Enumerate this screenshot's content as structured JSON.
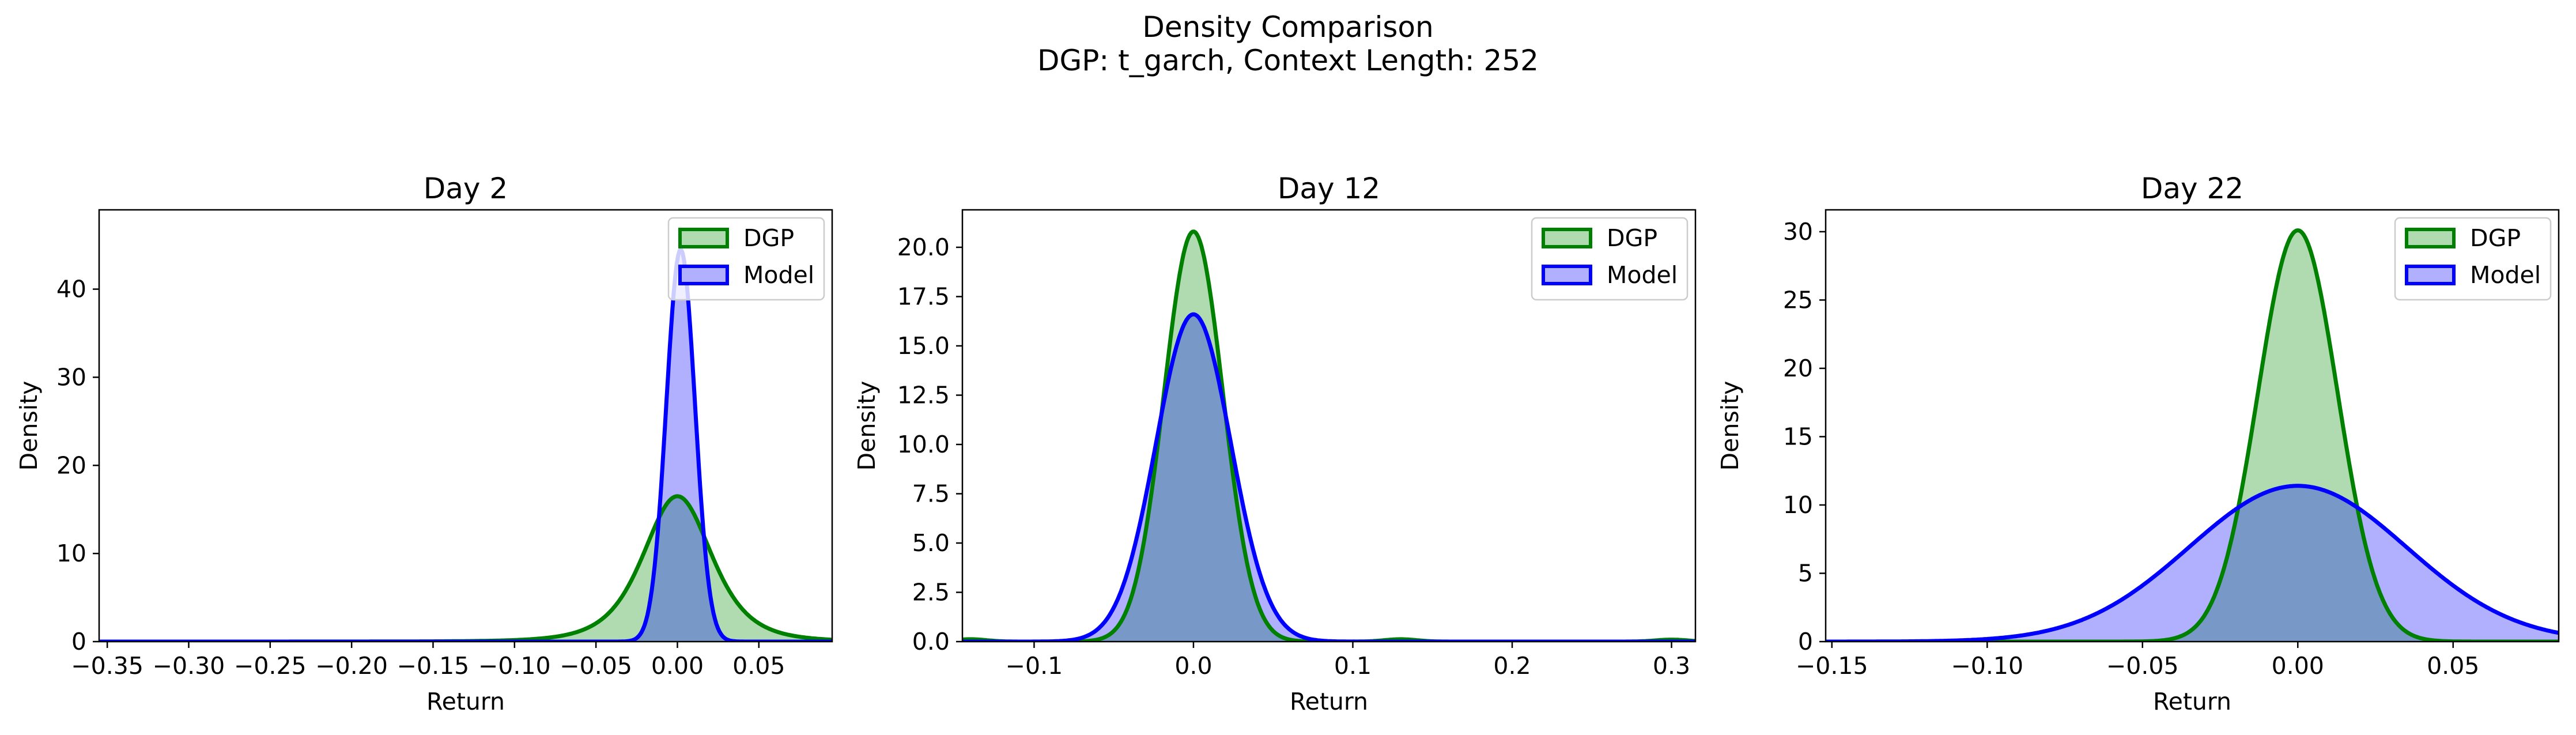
{
  "figure": {
    "title_line1": "Density Comparison",
    "title_line2": "DGP: t_garch, Context Length: 252"
  },
  "colors": {
    "dgp_line": "#008000",
    "dgp_fill": "#b0dab0",
    "model_line": "#0000ff",
    "model_fill": "#b0b0ff",
    "overlap_fill": "#7898c8"
  },
  "chart_data": [
    {
      "type": "area",
      "title": "Day 2",
      "xlabel": "Return",
      "ylabel": "Density",
      "xlim": [
        -0.355,
        0.095
      ],
      "ylim": [
        0,
        49
      ],
      "xticks": [
        -0.35,
        -0.3,
        -0.25,
        -0.2,
        -0.15,
        -0.1,
        -0.05,
        0.0,
        0.05
      ],
      "xtick_labels": [
        "−0.35",
        "−0.30",
        "−0.25",
        "−0.20",
        "−0.15",
        "−0.10",
        "−0.05",
        "0.00",
        "0.05"
      ],
      "yticks": [
        0,
        10,
        20,
        30,
        40
      ],
      "ytick_labels": [
        "0",
        "10",
        "20",
        "30",
        "40"
      ],
      "legend": {
        "position": "top-right",
        "entries": [
          "DGP",
          "Model"
        ]
      },
      "series": [
        {
          "name": "DGP",
          "kind": "t",
          "center": 0.0,
          "peak": 16.5,
          "scale": 0.022,
          "df": 4
        },
        {
          "name": "Model",
          "kind": "normal",
          "center": 0.002,
          "peak": 44.5,
          "sigma": 0.0088
        }
      ]
    },
    {
      "type": "area",
      "title": "Day 12",
      "xlabel": "Return",
      "ylabel": "Density",
      "xlim": [
        -0.145,
        0.315
      ],
      "ylim": [
        0,
        21.9
      ],
      "xticks": [
        -0.1,
        0.0,
        0.1,
        0.2,
        0.3
      ],
      "xtick_labels": [
        "−0.1",
        "0.0",
        "0.1",
        "0.2",
        "0.3"
      ],
      "yticks": [
        0,
        2.5,
        5,
        7.5,
        10,
        12.5,
        15,
        17.5,
        20
      ],
      "ytick_labels": [
        "0.0",
        "2.5",
        "5.0",
        "7.5",
        "10.0",
        "12.5",
        "15.0",
        "17.5",
        "20.0"
      ],
      "legend": {
        "position": "top-right",
        "entries": [
          "DGP",
          "Model"
        ]
      },
      "series": [
        {
          "name": "DGP",
          "kind": "normal",
          "center": 0.0,
          "peak": 20.8,
          "sigma": 0.0185,
          "bumps": [
            [
              -0.14,
              0.12,
              0.01
            ],
            [
              0.13,
              0.12,
              0.01
            ],
            [
              0.3,
              0.1,
              0.01
            ]
          ]
        },
        {
          "name": "Model",
          "kind": "normal",
          "center": 0.0,
          "peak": 16.6,
          "sigma": 0.0235
        }
      ]
    },
    {
      "type": "area",
      "title": "Day 22",
      "xlabel": "Return",
      "ylabel": "Density",
      "xlim": [
        -0.152,
        0.084
      ],
      "ylim": [
        0,
        31.6
      ],
      "xticks": [
        -0.15,
        -0.1,
        -0.05,
        0.0,
        0.05
      ],
      "xtick_labels": [
        "−0.15",
        "−0.10",
        "−0.05",
        "0.00",
        "0.05"
      ],
      "yticks": [
        0,
        5,
        10,
        15,
        20,
        25,
        30
      ],
      "ytick_labels": [
        "0",
        "5",
        "10",
        "15",
        "20",
        "25",
        "30"
      ],
      "legend": {
        "position": "top-right",
        "entries": [
          "DGP",
          "Model"
        ]
      },
      "series": [
        {
          "name": "DGP",
          "kind": "normal",
          "center": 0.0,
          "peak": 30.1,
          "sigma": 0.0128
        },
        {
          "name": "Model",
          "kind": "normal",
          "center": 0.0,
          "peak": 11.4,
          "sigma": 0.035
        }
      ]
    }
  ]
}
